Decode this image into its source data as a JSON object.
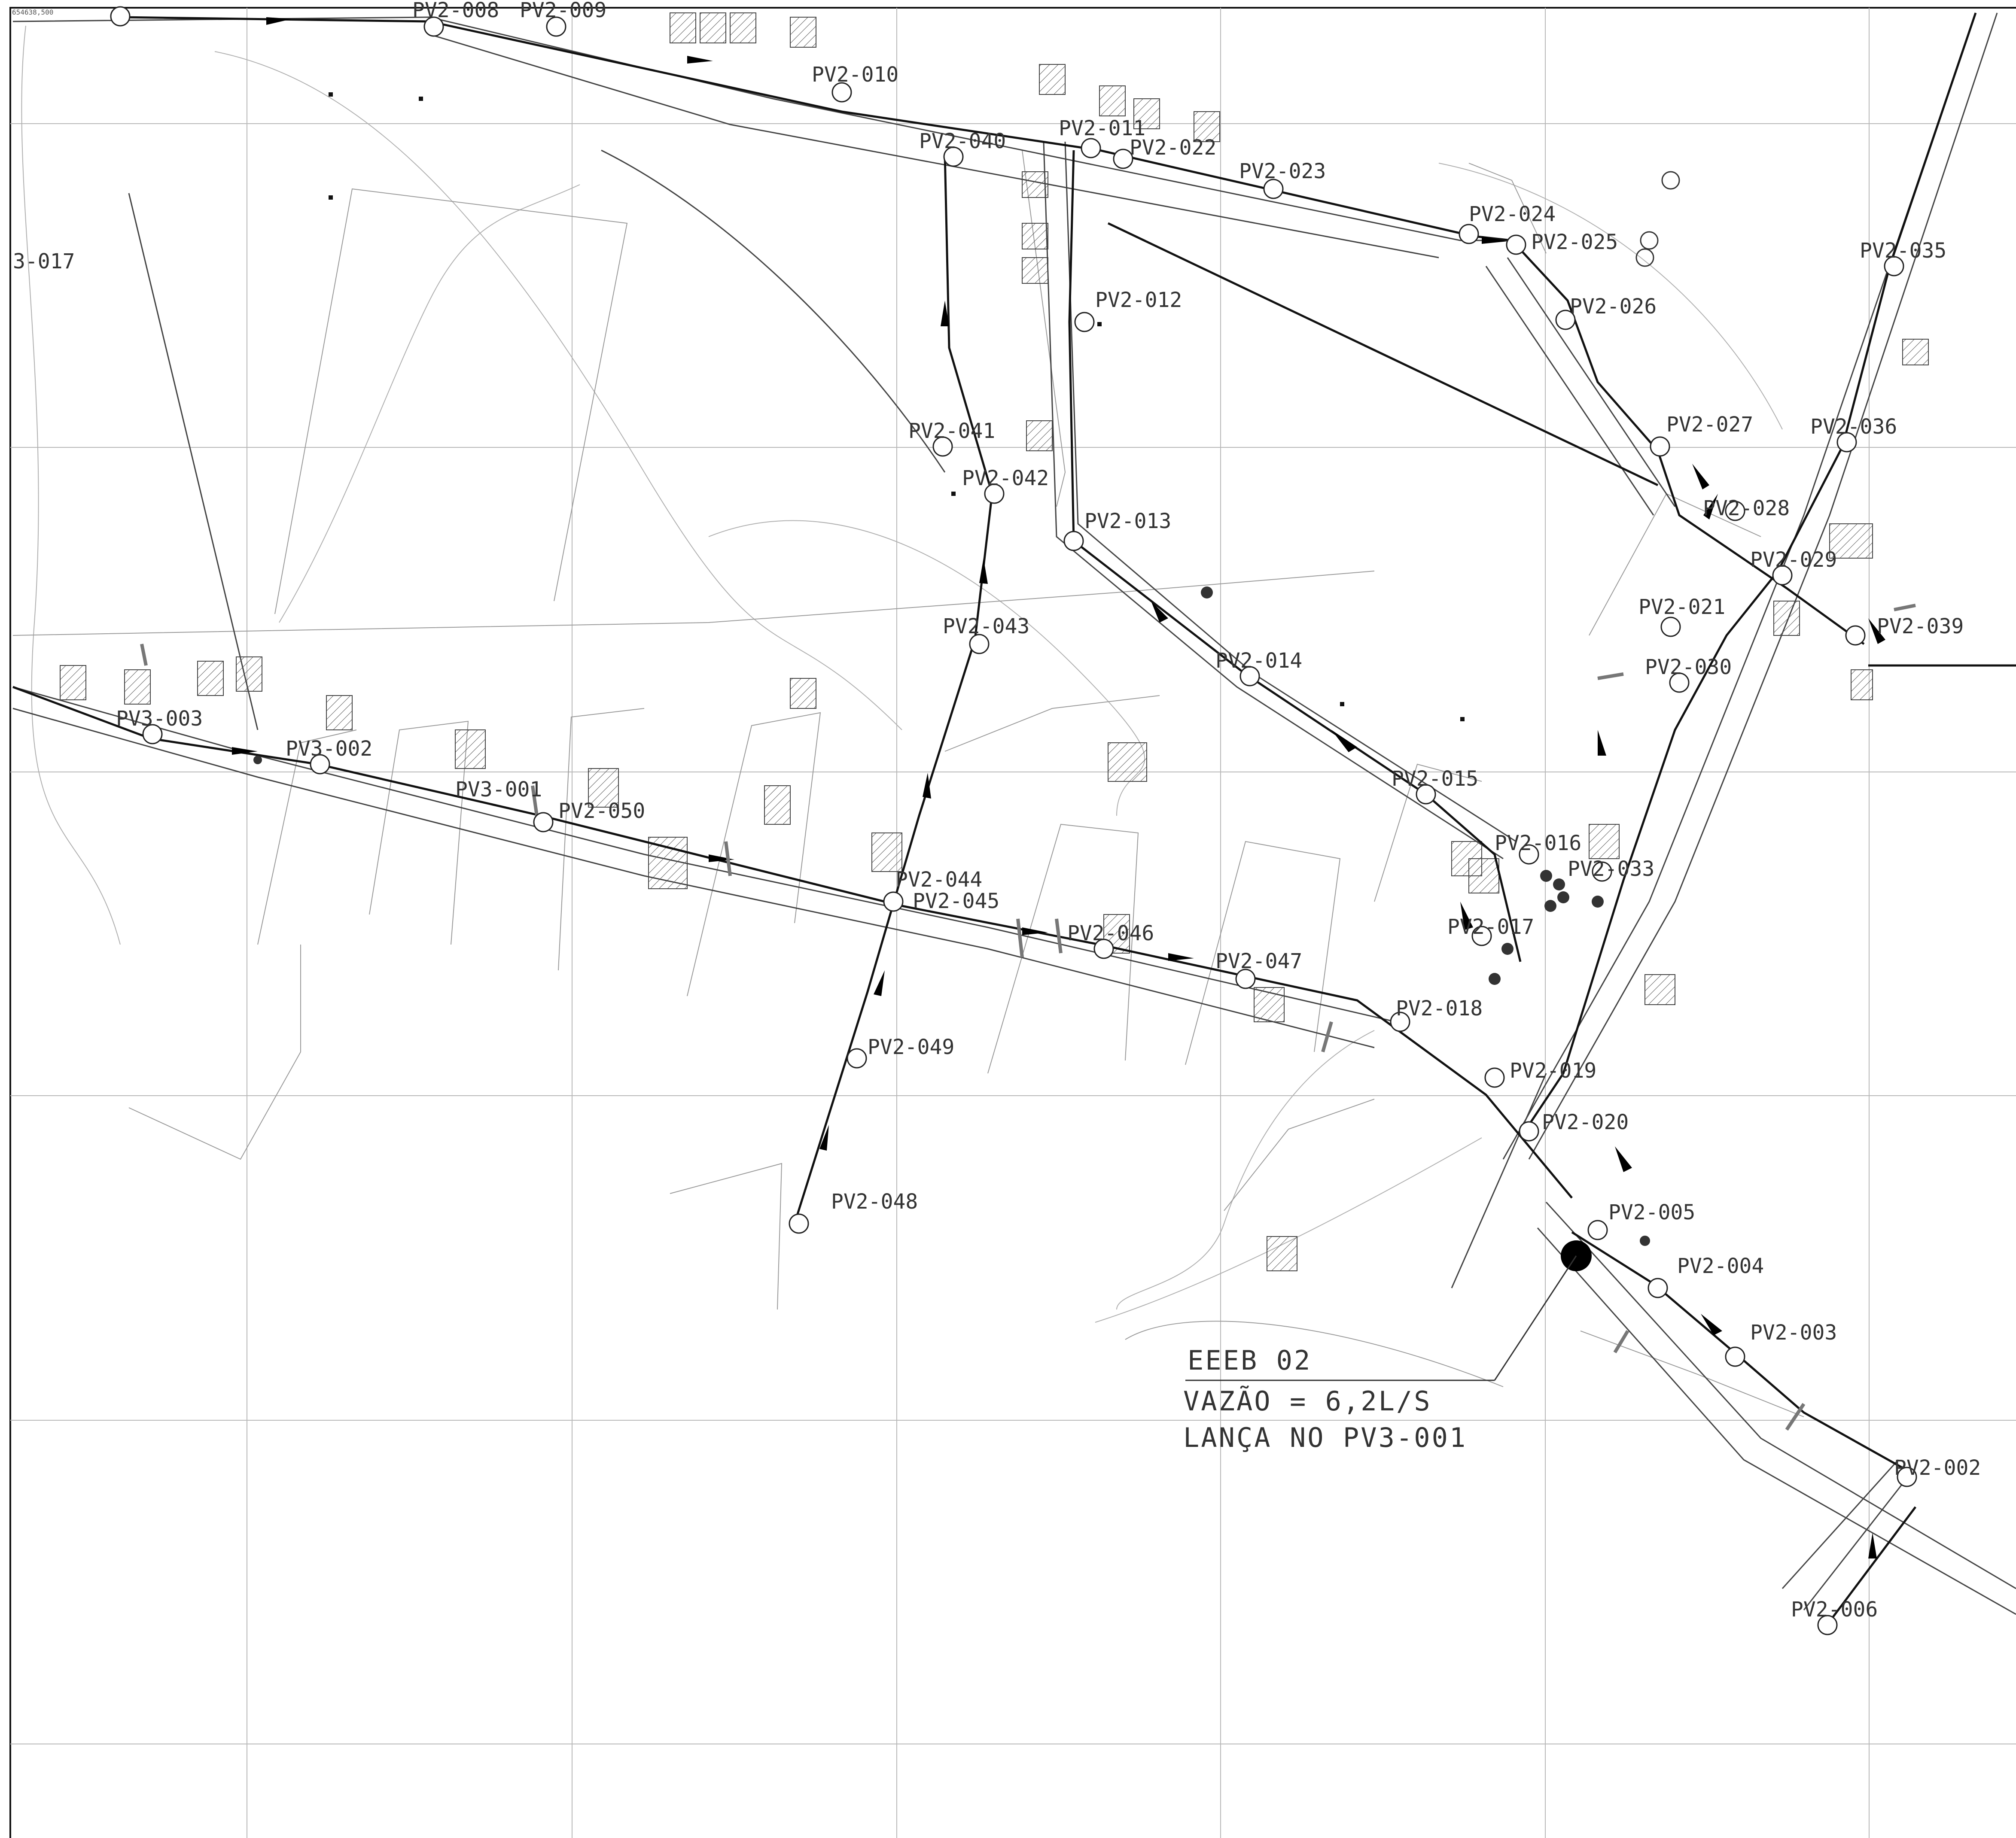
{
  "title_block": {
    "corner_code": "654638,500"
  },
  "annotation": {
    "station": "EEEB 02",
    "flow": "VAZÃO = 6,2L/S",
    "discharge": "LANÇA NO PV3-001"
  },
  "manholes": [
    {
      "id": "pv2-008",
      "label": "PV2-008"
    },
    {
      "id": "pv2-009",
      "label": "PV2-009"
    },
    {
      "id": "pv2-010",
      "label": "PV2-010"
    },
    {
      "id": "pv2-040",
      "label": "PV2-040"
    },
    {
      "id": "pv2-011",
      "label": "PV2-011"
    },
    {
      "id": "pv2-022",
      "label": "PV2-022"
    },
    {
      "id": "pv2-023",
      "label": "PV2-023"
    },
    {
      "id": "pv2-024",
      "label": "PV2-024"
    },
    {
      "id": "pv2-025",
      "label": "PV2-025"
    },
    {
      "id": "pv2-026",
      "label": "PV2-026"
    },
    {
      "id": "pv2-012",
      "label": "PV2-012"
    },
    {
      "id": "pv2-027",
      "label": "PV2-027"
    },
    {
      "id": "pv2-041",
      "label": "PV2-041"
    },
    {
      "id": "pv2-042",
      "label": "PV2-042"
    },
    {
      "id": "pv2-013",
      "label": "PV2-013"
    },
    {
      "id": "pv2-028",
      "label": "PV2-028"
    },
    {
      "id": "pv2-029",
      "label": "PV2-029"
    },
    {
      "id": "pv2-035",
      "label": "PV2-035"
    },
    {
      "id": "pv2-036",
      "label": "PV2-036"
    },
    {
      "id": "pv2-039",
      "label": "PV2-039"
    },
    {
      "id": "pv2-021",
      "label": "PV2-021"
    },
    {
      "id": "pv2-030",
      "label": "PV2-030"
    },
    {
      "id": "pv2-043",
      "label": "PV2-043"
    },
    {
      "id": "pv2-014",
      "label": "PV2-014"
    },
    {
      "id": "pv3-003",
      "label": "PV3-003"
    },
    {
      "id": "pv3-002",
      "label": "PV3-002"
    },
    {
      "id": "pv3-001",
      "label": "PV3-001"
    },
    {
      "id": "pv2-050",
      "label": "PV2-050"
    },
    {
      "id": "pv2-015",
      "label": "PV2-015"
    },
    {
      "id": "pv2-016",
      "label": "PV2-016"
    },
    {
      "id": "pv2-033",
      "label": "PV2-033"
    },
    {
      "id": "pv2-044",
      "label": "PV2-044"
    },
    {
      "id": "pv2-045",
      "label": "PV2-045"
    },
    {
      "id": "pv2-017",
      "label": "PV2-017"
    },
    {
      "id": "pv2-046",
      "label": "PV2-046"
    },
    {
      "id": "pv2-047",
      "label": "PV2-047"
    },
    {
      "id": "pv2-018",
      "label": "PV2-018"
    },
    {
      "id": "pv2-049",
      "label": "PV2-049"
    },
    {
      "id": "pv2-019",
      "label": "PV2-019"
    },
    {
      "id": "pv2-020",
      "label": "PV2-020"
    },
    {
      "id": "pv2-048",
      "label": "PV2-048"
    },
    {
      "id": "pv2-005",
      "label": "PV2-005"
    },
    {
      "id": "pv2-004",
      "label": "PV2-004"
    },
    {
      "id": "pv2-003",
      "label": "PV2-003"
    },
    {
      "id": "pv2-002",
      "label": "PV2-002"
    },
    {
      "id": "pv2-006",
      "label": "PV2-006"
    },
    {
      "id": "pv3-017",
      "label": "3-017"
    }
  ],
  "colors": {
    "pipe": "#111111",
    "grid": "#b8b8b8",
    "lot": "#9a9a9a"
  }
}
